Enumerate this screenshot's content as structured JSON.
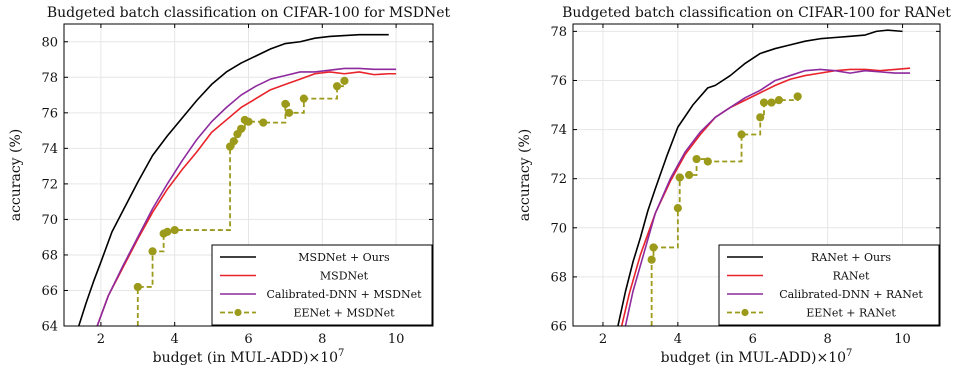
{
  "chart_data": [
    {
      "type": "line",
      "title": "Budgeted batch classification on CIFAR-100 for MSDNet",
      "xlabel": "budget (in MUL-ADD)×10",
      "xlabel_exponent": "7",
      "ylabel": "accuracy (%)",
      "xlim": [
        1,
        11
      ],
      "ylim": [
        64,
        81
      ],
      "xticks": [
        2,
        4,
        6,
        8,
        10
      ],
      "xtick_labels": [
        "2",
        "4",
        "6",
        "8",
        "10"
      ],
      "yticks": [
        64,
        66,
        68,
        70,
        72,
        74,
        76,
        78,
        80
      ],
      "ytick_labels": [
        "64",
        "66",
        "68",
        "70",
        "72",
        "74",
        "76",
        "78",
        "80"
      ],
      "grid": true,
      "legend_position": "bottom-right",
      "series": [
        {
          "name": "MSDNet + Ours",
          "color": "#000000",
          "style": "solid",
          "x": [
            1.4,
            1.6,
            1.8,
            2.0,
            2.3,
            2.6,
            3.0,
            3.4,
            3.8,
            4.2,
            4.6,
            5.0,
            5.4,
            5.8,
            6.2,
            6.6,
            7.0,
            7.4,
            7.8,
            8.2,
            8.6,
            9.0,
            9.4,
            9.8
          ],
          "y": [
            64.0,
            65.3,
            66.5,
            67.6,
            69.3,
            70.5,
            72.1,
            73.6,
            74.7,
            75.7,
            76.7,
            77.6,
            78.3,
            78.8,
            79.2,
            79.6,
            79.9,
            80.0,
            80.2,
            80.3,
            80.35,
            80.4,
            80.4,
            80.4
          ]
        },
        {
          "name": "MSDNet",
          "color": "#e8232a",
          "style": "solid",
          "x": [
            1.9,
            2.2,
            2.6,
            3.0,
            3.4,
            3.8,
            4.2,
            4.6,
            5.0,
            5.4,
            5.8,
            6.2,
            6.6,
            7.0,
            7.4,
            7.8,
            8.2,
            8.6,
            9.0,
            9.4,
            9.8,
            10.0
          ],
          "y": [
            64.0,
            65.7,
            67.3,
            68.9,
            70.4,
            71.7,
            72.8,
            73.8,
            74.9,
            75.6,
            76.3,
            76.8,
            77.3,
            77.6,
            77.9,
            78.2,
            78.3,
            78.2,
            78.3,
            78.15,
            78.2,
            78.2
          ]
        },
        {
          "name": "Calibrated-DNN + MSDNet",
          "color": "#8e2a9e",
          "style": "solid",
          "x": [
            1.9,
            2.2,
            2.6,
            3.0,
            3.4,
            3.8,
            4.2,
            4.6,
            5.0,
            5.4,
            5.8,
            6.2,
            6.6,
            7.0,
            7.4,
            7.8,
            8.2,
            8.6,
            9.0,
            9.4,
            10.0
          ],
          "y": [
            64.0,
            65.7,
            67.4,
            69.0,
            70.6,
            72.0,
            73.3,
            74.5,
            75.5,
            76.3,
            77.0,
            77.5,
            77.9,
            78.1,
            78.3,
            78.3,
            78.4,
            78.5,
            78.5,
            78.45,
            78.45
          ]
        },
        {
          "name": "EENet + MSDNet",
          "color": "#9c9a1a",
          "style": "dashed-steps-with-markers",
          "x": [
            3.0,
            3.4,
            3.7,
            3.8,
            4.0,
            5.5,
            5.6,
            5.7,
            5.8,
            5.9,
            6.0,
            6.4,
            7.0,
            7.1,
            7.5,
            8.4,
            8.6
          ],
          "y": [
            66.2,
            68.2,
            69.2,
            69.3,
            69.4,
            74.1,
            74.4,
            74.8,
            75.1,
            75.6,
            75.5,
            75.45,
            76.5,
            76.0,
            76.8,
            77.5,
            77.8
          ]
        }
      ]
    },
    {
      "type": "line",
      "title": "Budgeted batch classification on CIFAR-100 for RANet",
      "xlabel": "budget (in MUL-ADD)×10",
      "xlabel_exponent": "7",
      "ylabel": "accuracy (%)",
      "xlim": [
        1.2,
        11
      ],
      "ylim": [
        66,
        78.3
      ],
      "xticks": [
        2,
        4,
        6,
        8,
        10
      ],
      "xtick_labels": [
        "2",
        "4",
        "6",
        "8",
        "10"
      ],
      "yticks": [
        66,
        68,
        70,
        72,
        74,
        76,
        78
      ],
      "ytick_labels": [
        "66",
        "68",
        "70",
        "72",
        "74",
        "76",
        "78"
      ],
      "grid": true,
      "legend_position": "bottom-right",
      "series": [
        {
          "name": "RANet + Ours",
          "color": "#000000",
          "style": "solid",
          "x": [
            2.4,
            2.6,
            2.8,
            3.0,
            3.2,
            3.4,
            3.7,
            4.0,
            4.4,
            4.8,
            5.0,
            5.4,
            5.8,
            6.2,
            6.6,
            7.0,
            7.4,
            7.8,
            8.2,
            8.6,
            9.0,
            9.3,
            9.6,
            10.0
          ],
          "y": [
            66.0,
            67.4,
            68.6,
            69.6,
            70.7,
            71.6,
            72.9,
            74.1,
            75.0,
            75.7,
            75.8,
            76.2,
            76.7,
            77.1,
            77.3,
            77.45,
            77.6,
            77.7,
            77.75,
            77.8,
            77.85,
            78.0,
            78.05,
            78.0
          ]
        },
        {
          "name": "RANet",
          "color": "#e8232a",
          "style": "solid",
          "x": [
            2.5,
            2.7,
            3.0,
            3.4,
            3.8,
            4.2,
            4.6,
            5.0,
            5.4,
            5.8,
            6.2,
            6.6,
            7.0,
            7.4,
            7.8,
            8.2,
            8.6,
            9.0,
            9.4,
            9.8,
            10.2
          ],
          "y": [
            66.0,
            67.3,
            68.9,
            70.6,
            71.9,
            73.0,
            73.8,
            74.5,
            74.9,
            75.2,
            75.5,
            75.8,
            76.05,
            76.2,
            76.3,
            76.4,
            76.45,
            76.45,
            76.4,
            76.45,
            76.5
          ]
        },
        {
          "name": "Calibrated-DNN + RANet",
          "color": "#8e2a9e",
          "style": "solid",
          "x": [
            2.6,
            2.8,
            3.1,
            3.4,
            3.8,
            4.2,
            4.6,
            5.0,
            5.4,
            5.8,
            6.2,
            6.6,
            7.0,
            7.4,
            7.8,
            8.2,
            8.6,
            9.0,
            9.4,
            9.8,
            10.2
          ],
          "y": [
            66.0,
            67.4,
            69.0,
            70.6,
            72.0,
            73.1,
            73.9,
            74.5,
            74.9,
            75.3,
            75.6,
            76.0,
            76.2,
            76.4,
            76.45,
            76.4,
            76.3,
            76.4,
            76.35,
            76.3,
            76.3
          ]
        },
        {
          "name": "EENet + RANet",
          "color": "#9c9a1a",
          "style": "dashed-steps-with-markers",
          "x": [
            3.3,
            3.35,
            4.0,
            4.05,
            4.3,
            4.5,
            4.8,
            5.7,
            6.2,
            6.3,
            6.5,
            6.7,
            7.2
          ],
          "y": [
            68.7,
            69.2,
            70.8,
            72.05,
            72.15,
            72.8,
            72.7,
            73.8,
            74.5,
            75.1,
            75.1,
            75.2,
            75.35
          ]
        }
      ]
    }
  ]
}
